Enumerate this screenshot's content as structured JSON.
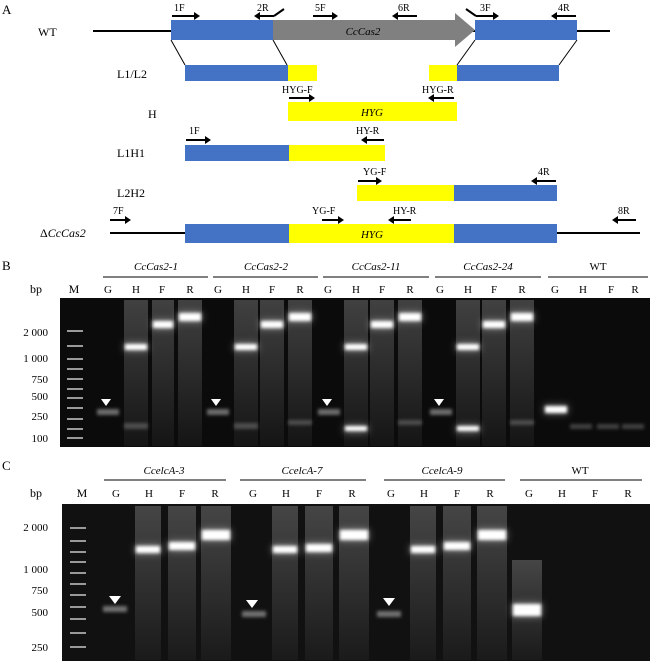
{
  "panelA": {
    "label": "A",
    "wt_label": "WT",
    "gene": "CcCas2",
    "rows": {
      "l1l2": "L1/L2",
      "h": "H",
      "l1h1": "L1H1",
      "l2h2": "L2H2",
      "delta_prefix": "Δ",
      "delta_gene": "CcCas2"
    },
    "hyg_label": "HYG",
    "primers": {
      "p1F": "1F",
      "p2R": "2R",
      "p5F": "5F",
      "p6R": "6R",
      "p3F": "3F",
      "p4R": "4R",
      "hygF": "HYG-F",
      "hygR": "HYG-R",
      "hyR": "HY-R",
      "ygF": "YG-F",
      "p7F": "7F",
      "p8R": "8R"
    },
    "colors": {
      "flank": "#4472c4",
      "gene": "#808080",
      "hyg": "#ffff00",
      "line": "#000000"
    }
  },
  "panelB": {
    "label": "B",
    "bp": "bp",
    "marker": "M",
    "groups": [
      "CcCas2-1",
      "CcCas2-2",
      "CcCas2-11",
      "CcCas2-24"
    ],
    "wt": "WT",
    "lanes": [
      "G",
      "H",
      "F",
      "R"
    ],
    "ladder": [
      "2 000",
      "1 000",
      "750",
      "500",
      "250",
      "100"
    ]
  },
  "panelC": {
    "label": "C",
    "bp": "bp",
    "marker": "M",
    "groups": [
      "CcelcA-3",
      "CcelcA-7",
      "CcelcA-9"
    ],
    "wt": "WT",
    "lanes": [
      "G",
      "H",
      "F",
      "R"
    ],
    "ladder": [
      "2 000",
      "1 000",
      "750",
      "500",
      "250"
    ]
  }
}
